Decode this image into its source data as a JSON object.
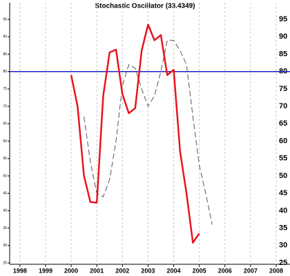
{
  "chart_data": {
    "type": "line",
    "title": "Stochastic Oscillator (33.4349)",
    "xlim": [
      1997.6,
      2008.0
    ],
    "xticks": [
      1998,
      1999,
      2000,
      2001,
      2002,
      2003,
      2004,
      2005,
      2006,
      2007,
      2008
    ],
    "ylim": [
      25,
      97
    ],
    "yticks": [
      25,
      30,
      35,
      40,
      45,
      50,
      55,
      60,
      65,
      70,
      75,
      80,
      85,
      90,
      95
    ],
    "grid": true,
    "reference_line": {
      "value": 80,
      "color": "#1c1cc8"
    },
    "series": [
      {
        "color": "#e8141e",
        "style": "solid",
        "x": [
          2000,
          2000.25,
          2000.5,
          2000.75,
          2001,
          2001.25,
          2001.5,
          2001.75,
          2002,
          2002.25,
          2002.5,
          2002.75,
          2003,
          2003.25,
          2003.5,
          2003.75,
          2004,
          2004.25,
          2004.5,
          2004.75,
          2005
        ],
        "values": [
          79,
          70,
          50,
          42.5,
          42.3,
          73,
          85.5,
          86.3,
          73.5,
          68,
          69.5,
          86,
          93.5,
          89,
          90.5,
          79,
          80.5,
          57,
          45,
          30.8,
          33.5
        ]
      },
      {
        "color": "#555555",
        "style": "dashed",
        "x": [
          2000.5,
          2000.75,
          2001,
          2001.25,
          2001.5,
          2001.75,
          2002,
          2002.25,
          2002.5,
          2002.75,
          2003,
          2003.25,
          2003.5,
          2003.75,
          2004,
          2004.25,
          2004.5,
          2004.75,
          2005,
          2005.25,
          2005.5
        ],
        "values": [
          67,
          54,
          45,
          44,
          49,
          60,
          76,
          82,
          81,
          75,
          70,
          73,
          80,
          89,
          89,
          86,
          82,
          67,
          53,
          45,
          36
        ]
      }
    ]
  }
}
